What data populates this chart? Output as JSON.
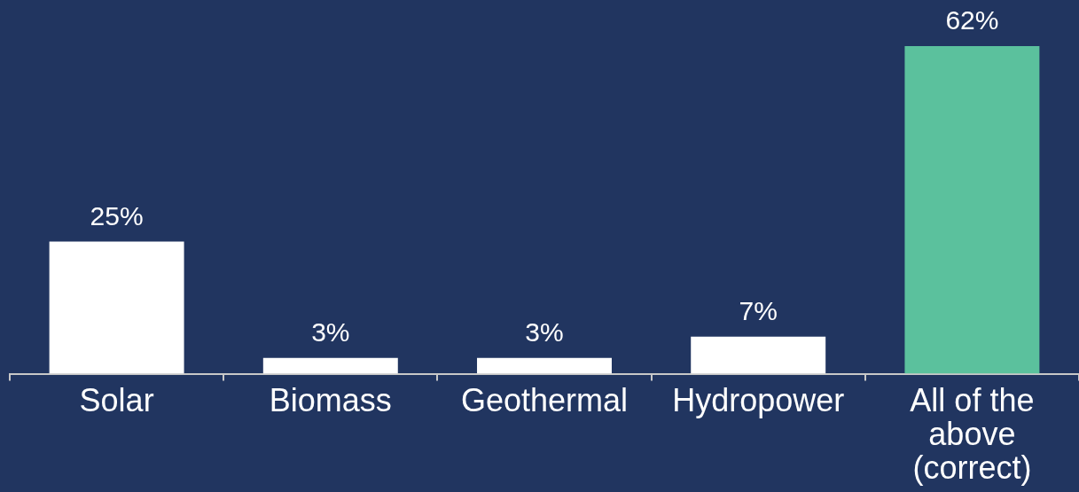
{
  "chart_data": {
    "type": "bar",
    "categories": [
      "Solar",
      "Biomass",
      "Geothermal",
      "Hydropower",
      "All of the above (correct)"
    ],
    "values": [
      25,
      3,
      3,
      7,
      62
    ],
    "colors": [
      "#ffffff",
      "#ffffff",
      "#ffffff",
      "#ffffff",
      "#5bc19d"
    ],
    "value_labels": [
      "25%",
      "3%",
      "3%",
      "7%",
      "62%"
    ]
  }
}
